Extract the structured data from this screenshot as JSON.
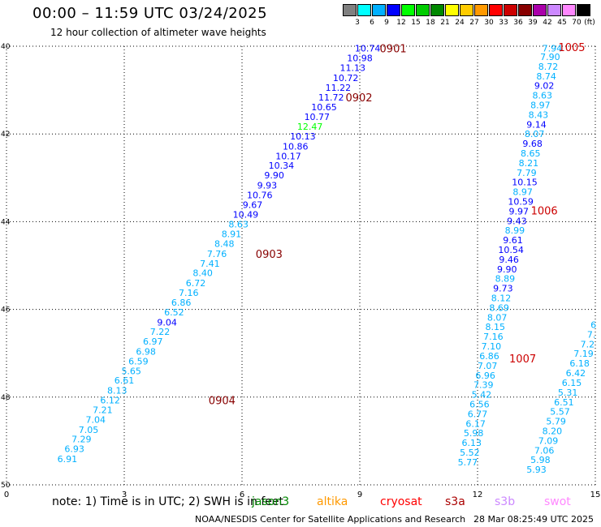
{
  "header": {
    "title": "00:00 – 11:59 UTC 03/24/2025",
    "subtitle": "12 hour collection of altimeter wave heights"
  },
  "colorbar": {
    "unit": "(ft)",
    "colors": [
      "#808080",
      "#00ffff",
      "#00b0ff",
      "#0000ff",
      "#00ff00",
      "#00cc00",
      "#008800",
      "#ffff00",
      "#ffcc00",
      "#ff9900",
      "#ff0000",
      "#cc0000",
      "#880000",
      "#aa00aa",
      "#cc88ff",
      "#ff88ff",
      "#000000"
    ],
    "labels": [
      "3",
      "6",
      "9",
      "12",
      "15",
      "18",
      "21",
      "24",
      "27",
      "30",
      "33",
      "36",
      "39",
      "42",
      "45",
      "70"
    ]
  },
  "axes": {
    "lat_labels": [
      "40",
      "42",
      "44",
      "46",
      "48",
      "50"
    ],
    "x_labels": [
      "0",
      "3",
      "6",
      "9",
      "12",
      "15"
    ]
  },
  "footer": {
    "note": "note:  1) Time is in UTC; 2) SWH is in feet",
    "missions": [
      {
        "name": "jason3",
        "color": "#008800"
      },
      {
        "name": "altika",
        "color": "#ff9900"
      },
      {
        "name": "cryosat",
        "color": "#ff0000"
      },
      {
        "name": "s3a",
        "color": "#aa0000"
      },
      {
        "name": "s3b",
        "color": "#cc88ff"
      },
      {
        "name": "swot",
        "color": "#ff88ff"
      }
    ],
    "credit": "NOAA/NESDIS Center for Satellite Applications and Research",
    "timestamp": "28 Mar 08:25:49 UTC 2025"
  },
  "passes": [
    {
      "label": "0901",
      "color": "#880000"
    },
    {
      "label": "0902",
      "color": "#880000"
    },
    {
      "label": "0903",
      "color": "#880000"
    },
    {
      "label": "0904",
      "color": "#880000"
    },
    {
      "label": "1005",
      "color": "#cc0000"
    },
    {
      "label": "1006",
      "color": "#cc0000"
    },
    {
      "label": "1007",
      "color": "#cc0000"
    }
  ],
  "chart_data": {
    "type": "scatter",
    "title": "00:00 – 11:59 UTC 03/24/2025",
    "ylim": [
      40,
      50
    ],
    "xlim": [
      0,
      15
    ],
    "tracks": [
      {
        "name": "track-left",
        "points": [
          {
            "lon": 9.2,
            "lat": 40.05,
            "swh": "10.74",
            "c": "#0000ff"
          },
          {
            "lon": 9.0,
            "lat": 40.27,
            "swh": "10.98",
            "c": "#0000ff"
          },
          {
            "lon": 8.82,
            "lat": 40.49,
            "swh": "11.13",
            "c": "#0000ff"
          },
          {
            "lon": 8.64,
            "lat": 40.72,
            "swh": "10.72",
            "c": "#0000ff"
          },
          {
            "lon": 8.45,
            "lat": 40.94,
            "swh": "11.22",
            "c": "#0000ff"
          },
          {
            "lon": 8.27,
            "lat": 41.16,
            "swh": "11.72",
            "c": "#0000ff"
          },
          {
            "lon": 8.09,
            "lat": 41.39,
            "swh": "10.65",
            "c": "#0000ff"
          },
          {
            "lon": 7.91,
            "lat": 41.61,
            "swh": "10.77",
            "c": "#0000ff"
          },
          {
            "lon": 7.73,
            "lat": 41.83,
            "swh": "12.47",
            "c": "#00ff00"
          },
          {
            "lon": 7.55,
            "lat": 42.05,
            "swh": "10.13",
            "c": "#0000ff"
          },
          {
            "lon": 7.36,
            "lat": 42.28,
            "swh": "10.86",
            "c": "#0000ff"
          },
          {
            "lon": 7.18,
            "lat": 42.5,
            "swh": "10.17",
            "c": "#0000ff"
          },
          {
            "lon": 7.0,
            "lat": 42.72,
            "swh": "10.34",
            "c": "#0000ff"
          },
          {
            "lon": 6.82,
            "lat": 42.94,
            "swh": "9.90",
            "c": "#0000ff"
          },
          {
            "lon": 6.64,
            "lat": 43.17,
            "swh": "9.93",
            "c": "#0000ff"
          },
          {
            "lon": 6.45,
            "lat": 43.39,
            "swh": "10.76",
            "c": "#0000ff"
          },
          {
            "lon": 6.27,
            "lat": 43.61,
            "swh": "9.67",
            "c": "#0000ff"
          },
          {
            "lon": 6.09,
            "lat": 43.84,
            "swh": "10.49",
            "c": "#0000ff"
          },
          {
            "lon": 5.91,
            "lat": 44.06,
            "swh": "8.63",
            "c": "#00b0ff"
          },
          {
            "lon": 5.73,
            "lat": 44.28,
            "swh": "8.91",
            "c": "#00b0ff"
          },
          {
            "lon": 5.55,
            "lat": 44.5,
            "swh": "8.48",
            "c": "#00b0ff"
          },
          {
            "lon": 5.36,
            "lat": 44.73,
            "swh": "7.76",
            "c": "#00b0ff"
          },
          {
            "lon": 5.18,
            "lat": 44.95,
            "swh": "7.41",
            "c": "#00b0ff"
          },
          {
            "lon": 5.0,
            "lat": 45.17,
            "swh": "8.40",
            "c": "#00b0ff"
          },
          {
            "lon": 4.82,
            "lat": 45.4,
            "swh": "6.72",
            "c": "#00b0ff"
          },
          {
            "lon": 4.64,
            "lat": 45.62,
            "swh": "7.16",
            "c": "#00b0ff"
          },
          {
            "lon": 4.45,
            "lat": 45.84,
            "swh": "6.86",
            "c": "#00b0ff"
          },
          {
            "lon": 4.27,
            "lat": 46.06,
            "swh": "6.52",
            "c": "#00b0ff"
          },
          {
            "lon": 4.09,
            "lat": 46.29,
            "swh": "9.04",
            "c": "#0000ff"
          },
          {
            "lon": 3.91,
            "lat": 46.51,
            "swh": "7.22",
            "c": "#00b0ff"
          },
          {
            "lon": 3.73,
            "lat": 46.73,
            "swh": "6.97",
            "c": "#00b0ff"
          },
          {
            "lon": 3.55,
            "lat": 46.96,
            "swh": "6.98",
            "c": "#00b0ff"
          },
          {
            "lon": 3.36,
            "lat": 47.18,
            "swh": "6.59",
            "c": "#00b0ff"
          },
          {
            "lon": 3.18,
            "lat": 47.4,
            "swh": "5.65",
            "c": "#00b0ff"
          },
          {
            "lon": 3.0,
            "lat": 47.62,
            "swh": "6.61",
            "c": "#00b0ff"
          },
          {
            "lon": 2.82,
            "lat": 47.85,
            "swh": "8.13",
            "c": "#00b0ff"
          },
          {
            "lon": 2.64,
            "lat": 48.07,
            "swh": "6.12",
            "c": "#00b0ff"
          },
          {
            "lon": 2.45,
            "lat": 48.29,
            "swh": "7.21",
            "c": "#00b0ff"
          },
          {
            "lon": 2.27,
            "lat": 48.51,
            "swh": "7.04",
            "c": "#00b0ff"
          },
          {
            "lon": 2.09,
            "lat": 48.74,
            "swh": "7.05",
            "c": "#00b0ff"
          },
          {
            "lon": 1.91,
            "lat": 48.96,
            "swh": "7.29",
            "c": "#00b0ff"
          },
          {
            "lon": 1.73,
            "lat": 49.18,
            "swh": "6.93",
            "c": "#00b0ff"
          },
          {
            "lon": 1.55,
            "lat": 49.41,
            "swh": "6.91",
            "c": "#00b0ff"
          }
        ]
      },
      {
        "name": "track-right",
        "points": [
          {
            "lon": 13.9,
            "lat": 40.05,
            "swh": "7.94",
            "c": "#00b0ff"
          },
          {
            "lon": 13.85,
            "lat": 40.24,
            "swh": "7.90",
            "c": "#00b0ff"
          },
          {
            "lon": 13.8,
            "lat": 40.46,
            "swh": "8.72",
            "c": "#00b0ff"
          },
          {
            "lon": 13.75,
            "lat": 40.68,
            "swh": "8.74",
            "c": "#00b0ff"
          },
          {
            "lon": 13.7,
            "lat": 40.9,
            "swh": "9.02",
            "c": "#0000ff"
          },
          {
            "lon": 13.65,
            "lat": 41.12,
            "swh": "8.63",
            "c": "#00b0ff"
          },
          {
            "lon": 13.6,
            "lat": 41.34,
            "swh": "8.97",
            "c": "#00b0ff"
          },
          {
            "lon": 13.55,
            "lat": 41.56,
            "swh": "8.43",
            "c": "#00b0ff"
          },
          {
            "lon": 13.5,
            "lat": 41.78,
            "swh": "9.14",
            "c": "#0000ff"
          },
          {
            "lon": 13.45,
            "lat": 42.0,
            "swh": "8.07",
            "c": "#00b0ff"
          },
          {
            "lon": 13.4,
            "lat": 42.22,
            "swh": "9.68",
            "c": "#0000ff"
          },
          {
            "lon": 13.35,
            "lat": 42.44,
            "swh": "8.65",
            "c": "#00b0ff"
          },
          {
            "lon": 13.3,
            "lat": 42.66,
            "swh": "8.21",
            "c": "#00b0ff"
          },
          {
            "lon": 13.25,
            "lat": 42.88,
            "swh": "7.79",
            "c": "#00b0ff"
          },
          {
            "lon": 13.2,
            "lat": 43.1,
            "swh": "10.15",
            "c": "#0000ff"
          },
          {
            "lon": 13.15,
            "lat": 43.32,
            "swh": "8.97",
            "c": "#00b0ff"
          },
          {
            "lon": 13.1,
            "lat": 43.54,
            "swh": "10.59",
            "c": "#0000ff"
          },
          {
            "lon": 13.05,
            "lat": 43.76,
            "swh": "9.97",
            "c": "#0000ff"
          },
          {
            "lon": 13.0,
            "lat": 43.98,
            "swh": "9.43",
            "c": "#0000ff"
          },
          {
            "lon": 12.95,
            "lat": 44.2,
            "swh": "8.99",
            "c": "#00b0ff"
          },
          {
            "lon": 12.9,
            "lat": 44.42,
            "swh": "9.61",
            "c": "#0000ff"
          },
          {
            "lon": 12.85,
            "lat": 44.64,
            "swh": "10.54",
            "c": "#0000ff"
          },
          {
            "lon": 12.8,
            "lat": 44.86,
            "swh": "9.46",
            "c": "#0000ff"
          },
          {
            "lon": 12.75,
            "lat": 45.08,
            "swh": "9.90",
            "c": "#0000ff"
          },
          {
            "lon": 12.7,
            "lat": 45.3,
            "swh": "8.89",
            "c": "#00b0ff"
          },
          {
            "lon": 12.65,
            "lat": 45.52,
            "swh": "9.73",
            "c": "#0000ff"
          },
          {
            "lon": 12.6,
            "lat": 45.74,
            "swh": "8.12",
            "c": "#00b0ff"
          },
          {
            "lon": 12.55,
            "lat": 45.96,
            "swh": "8.69",
            "c": "#00b0ff"
          },
          {
            "lon": 12.5,
            "lat": 46.18,
            "swh": "8.07",
            "c": "#00b0ff"
          },
          {
            "lon": 12.45,
            "lat": 46.4,
            "swh": "8.15",
            "c": "#00b0ff"
          },
          {
            "lon": 12.4,
            "lat": 46.62,
            "swh": "7.16",
            "c": "#00b0ff"
          },
          {
            "lon": 12.35,
            "lat": 46.84,
            "swh": "7.10",
            "c": "#00b0ff"
          },
          {
            "lon": 12.3,
            "lat": 47.06,
            "swh": "6.86",
            "c": "#00b0ff"
          },
          {
            "lon": 12.25,
            "lat": 47.28,
            "swh": "7.07",
            "c": "#00b0ff"
          },
          {
            "lon": 12.2,
            "lat": 47.5,
            "swh": "6.96",
            "c": "#00b0ff"
          },
          {
            "lon": 12.15,
            "lat": 47.72,
            "swh": "7.39",
            "c": "#00b0ff"
          },
          {
            "lon": 12.1,
            "lat": 47.94,
            "swh": "5.42",
            "c": "#00b0ff"
          },
          {
            "lon": 12.05,
            "lat": 48.16,
            "swh": "6.56",
            "c": "#00b0ff"
          },
          {
            "lon": 12.0,
            "lat": 48.38,
            "swh": "6.77",
            "c": "#00b0ff"
          },
          {
            "lon": 11.95,
            "lat": 48.6,
            "swh": "6.17",
            "c": "#00b0ff"
          },
          {
            "lon": 11.9,
            "lat": 48.82,
            "swh": "5.98",
            "c": "#00b0ff"
          },
          {
            "lon": 11.85,
            "lat": 49.04,
            "swh": "6.13",
            "c": "#00b0ff"
          },
          {
            "lon": 11.8,
            "lat": 49.26,
            "swh": "5.52",
            "c": "#00b0ff"
          },
          {
            "lon": 11.75,
            "lat": 49.48,
            "swh": "5.77",
            "c": "#00b0ff"
          }
        ]
      },
      {
        "name": "track-far-right",
        "points": [
          {
            "lon": 14.95,
            "lat": 46.35,
            "swh": "6",
            "c": "#00b0ff"
          },
          {
            "lon": 14.9,
            "lat": 46.57,
            "swh": "7.",
            "c": "#00b0ff"
          },
          {
            "lon": 14.8,
            "lat": 46.79,
            "swh": "7.2",
            "c": "#00b0ff"
          },
          {
            "lon": 14.7,
            "lat": 47.01,
            "swh": "7.19",
            "c": "#00b0ff"
          },
          {
            "lon": 14.6,
            "lat": 47.23,
            "swh": "6.18",
            "c": "#00b0ff"
          },
          {
            "lon": 14.5,
            "lat": 47.45,
            "swh": "6.42",
            "c": "#00b0ff"
          },
          {
            "lon": 14.4,
            "lat": 47.67,
            "swh": "6.15",
            "c": "#00b0ff"
          },
          {
            "lon": 14.3,
            "lat": 47.89,
            "swh": "5.31",
            "c": "#00b0ff"
          },
          {
            "lon": 14.2,
            "lat": 48.11,
            "swh": "6.51",
            "c": "#00b0ff"
          },
          {
            "lon": 14.1,
            "lat": 48.33,
            "swh": "5.57",
            "c": "#00b0ff"
          },
          {
            "lon": 14.0,
            "lat": 48.55,
            "swh": "5.79",
            "c": "#00b0ff"
          },
          {
            "lon": 13.9,
            "lat": 48.77,
            "swh": "8.20",
            "c": "#00b0ff"
          },
          {
            "lon": 13.8,
            "lat": 48.99,
            "swh": "7.09",
            "c": "#00b0ff"
          },
          {
            "lon": 13.7,
            "lat": 49.21,
            "swh": "7.06",
            "c": "#00b0ff"
          },
          {
            "lon": 13.6,
            "lat": 49.43,
            "swh": "5.98",
            "c": "#00b0ff"
          },
          {
            "lon": 13.5,
            "lat": 49.65,
            "swh": "5.93",
            "c": "#00b0ff"
          }
        ]
      }
    ],
    "pass_labels": [
      {
        "lon": 9.85,
        "lat": 40.05
      },
      {
        "lon": 8.98,
        "lat": 41.16
      },
      {
        "lon": 6.69,
        "lat": 44.73
      },
      {
        "lon": 5.49,
        "lat": 48.07
      },
      {
        "lon": 14.4,
        "lat": 40.02
      },
      {
        "lon": 13.7,
        "lat": 43.74
      },
      {
        "lon": 13.15,
        "lat": 47.12
      }
    ]
  }
}
